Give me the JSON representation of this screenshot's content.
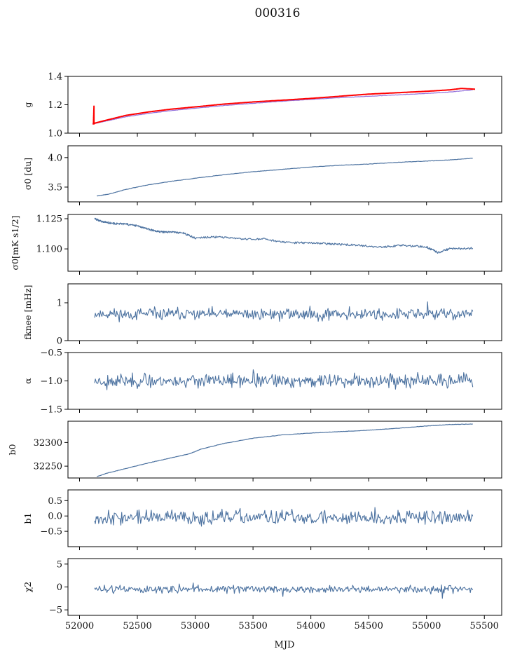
{
  "figure_title": "000316",
  "colors": {
    "series": "#4C72A0",
    "red": "#FF0000",
    "axis": "#000000"
  },
  "chart_data": [
    {
      "type": "line",
      "ylabel": "g",
      "xlim": [
        51900,
        55650
      ],
      "ylim": [
        1.0,
        1.4
      ],
      "yticks": [
        1.0,
        1.2,
        1.4
      ],
      "ytick_labels": [
        "1.0",
        "1.2",
        "1.4"
      ],
      "xtick_labels_shown": false,
      "series": [
        {
          "color": "#9370DB",
          "width": 1.2,
          "x": [
            52110,
            52200,
            52400,
            52600,
            52800,
            53000,
            53250,
            53500,
            53750,
            54000,
            54250,
            54500,
            54750,
            55000,
            55200,
            55400
          ],
          "y": [
            1.065,
            1.08,
            1.115,
            1.14,
            1.16,
            1.175,
            1.195,
            1.21,
            1.225,
            1.238,
            1.25,
            1.26,
            1.27,
            1.28,
            1.29,
            1.305
          ]
        },
        {
          "color": "#FF0000",
          "width": 2.0,
          "x": [
            52120,
            52125,
            52125,
            52130,
            52200,
            52400,
            52600,
            52800,
            53000,
            53250,
            53500,
            53750,
            54000,
            54250,
            54500,
            54750,
            55000,
            55200,
            55300,
            55420
          ],
          "y": [
            1.06,
            1.19,
            1.065,
            1.07,
            1.085,
            1.125,
            1.15,
            1.17,
            1.185,
            1.205,
            1.22,
            1.232,
            1.245,
            1.26,
            1.275,
            1.285,
            1.295,
            1.305,
            1.315,
            1.31
          ]
        }
      ]
    },
    {
      "type": "line",
      "ylabel": "σ0 [du]",
      "xlim": [
        51900,
        55650
      ],
      "ylim": [
        3.25,
        4.2
      ],
      "yticks": [
        3.5,
        4.0
      ],
      "ytick_labels": [
        "3.5",
        "4.0"
      ],
      "xtick_labels_shown": false,
      "series": [
        {
          "color": "#4C72A0",
          "width": 1.2,
          "x": [
            52150,
            52250,
            52400,
            52600,
            52800,
            53000,
            53250,
            53500,
            53750,
            54000,
            54250,
            54500,
            54750,
            55000,
            55200,
            55400
          ],
          "y": [
            3.35,
            3.38,
            3.46,
            3.54,
            3.6,
            3.65,
            3.71,
            3.76,
            3.8,
            3.84,
            3.87,
            3.89,
            3.92,
            3.94,
            3.96,
            3.99
          ]
        }
      ]
    },
    {
      "type": "line",
      "ylabel": "σ0[mK s1/2]",
      "xlim": [
        51900,
        55650
      ],
      "ylim": [
        1.0815,
        1.1285
      ],
      "yticks": [
        1.1,
        1.125
      ],
      "ytick_labels": [
        "1.100",
        "1.125"
      ],
      "xtick_labels_shown": false,
      "series": [
        {
          "color": "#4C72A0",
          "width": 1.2,
          "x": [
            52130,
            52200,
            52300,
            52400,
            52500,
            52600,
            52700,
            52800,
            52900,
            53000,
            53200,
            53400,
            53600,
            53800,
            54000,
            54200,
            54400,
            54600,
            54800,
            55000,
            55100,
            55200,
            55400
          ],
          "y": [
            1.125,
            1.1225,
            1.121,
            1.1205,
            1.119,
            1.116,
            1.114,
            1.114,
            1.113,
            1.109,
            1.11,
            1.108,
            1.108,
            1.105,
            1.105,
            1.104,
            1.103,
            1.1015,
            1.103,
            1.1015,
            1.097,
            1.1,
            1.1005
          ]
        }
      ]
    },
    {
      "type": "line",
      "ylabel": "fknee [mHz]",
      "xlim": [
        51900,
        55650
      ],
      "ylim": [
        0.0,
        1.5
      ],
      "yticks": [
        0,
        1
      ],
      "ytick_labels": [
        "0",
        "1"
      ],
      "xtick_labels_shown": false,
      "noise": {
        "x_start": 52130,
        "x_end": 55400,
        "mean": 0.7,
        "amplitude": 0.13,
        "seed": 11
      }
    },
    {
      "type": "line",
      "ylabel": "α",
      "xlim": [
        51900,
        55650
      ],
      "ylim": [
        -1.5,
        -0.5
      ],
      "yticks": [
        -1.5,
        -1.0,
        -0.5
      ],
      "ytick_labels": [
        "−1.5",
        "−1.0",
        "−0.5"
      ],
      "xtick_labels_shown": false,
      "noise": {
        "x_start": 52130,
        "x_end": 55400,
        "mean": -1.0,
        "amplitude": 0.1,
        "seed": 23
      }
    },
    {
      "type": "line",
      "ylabel": "b0",
      "xlim": [
        51900,
        55650
      ],
      "ylim": [
        32225,
        32345
      ],
      "yticks": [
        32250,
        32300
      ],
      "ytick_labels": [
        "32250",
        "32300"
      ],
      "xtick_labels_shown": false,
      "series": [
        {
          "color": "#4C72A0",
          "width": 1.2,
          "x": [
            52150,
            52250,
            52400,
            52600,
            52800,
            52950,
            53050,
            53250,
            53500,
            53750,
            54000,
            54250,
            54500,
            54750,
            55000,
            55200,
            55400
          ],
          "y": [
            32228,
            32236,
            32245,
            32257,
            32268,
            32276,
            32286,
            32298,
            32309,
            32316,
            32320,
            32323,
            32326,
            32330,
            32335,
            32338,
            32339
          ]
        }
      ]
    },
    {
      "type": "line",
      "ylabel": "b1",
      "xlim": [
        51900,
        55650
      ],
      "ylim": [
        -1.0,
        0.85
      ],
      "yticks": [
        -0.5,
        0.0,
        0.5
      ],
      "ytick_labels": [
        "−0.5",
        "0.0",
        "0.5"
      ],
      "xtick_labels_shown": false,
      "noise": {
        "x_start": 52130,
        "x_end": 55400,
        "mean": -0.05,
        "amplitude": 0.2,
        "seed": 37
      }
    },
    {
      "type": "line",
      "ylabel": "χ2",
      "xlabel": "MJD",
      "xlim": [
        51900,
        55650
      ],
      "ylim": [
        -6.2,
        6.2
      ],
      "yticks": [
        -5,
        0,
        5
      ],
      "ytick_labels": [
        "−5",
        "0",
        "5"
      ],
      "xticks": [
        52000,
        52500,
        53000,
        53500,
        54000,
        54500,
        55000,
        55500
      ],
      "xtick_labels": [
        "52000",
        "52500",
        "53000",
        "53500",
        "54000",
        "54500",
        "55000",
        "55500"
      ],
      "xtick_labels_shown": true,
      "noise": {
        "x_start": 52130,
        "x_end": 55400,
        "mean": -0.5,
        "amplitude": 0.7,
        "seed": 51
      }
    }
  ]
}
